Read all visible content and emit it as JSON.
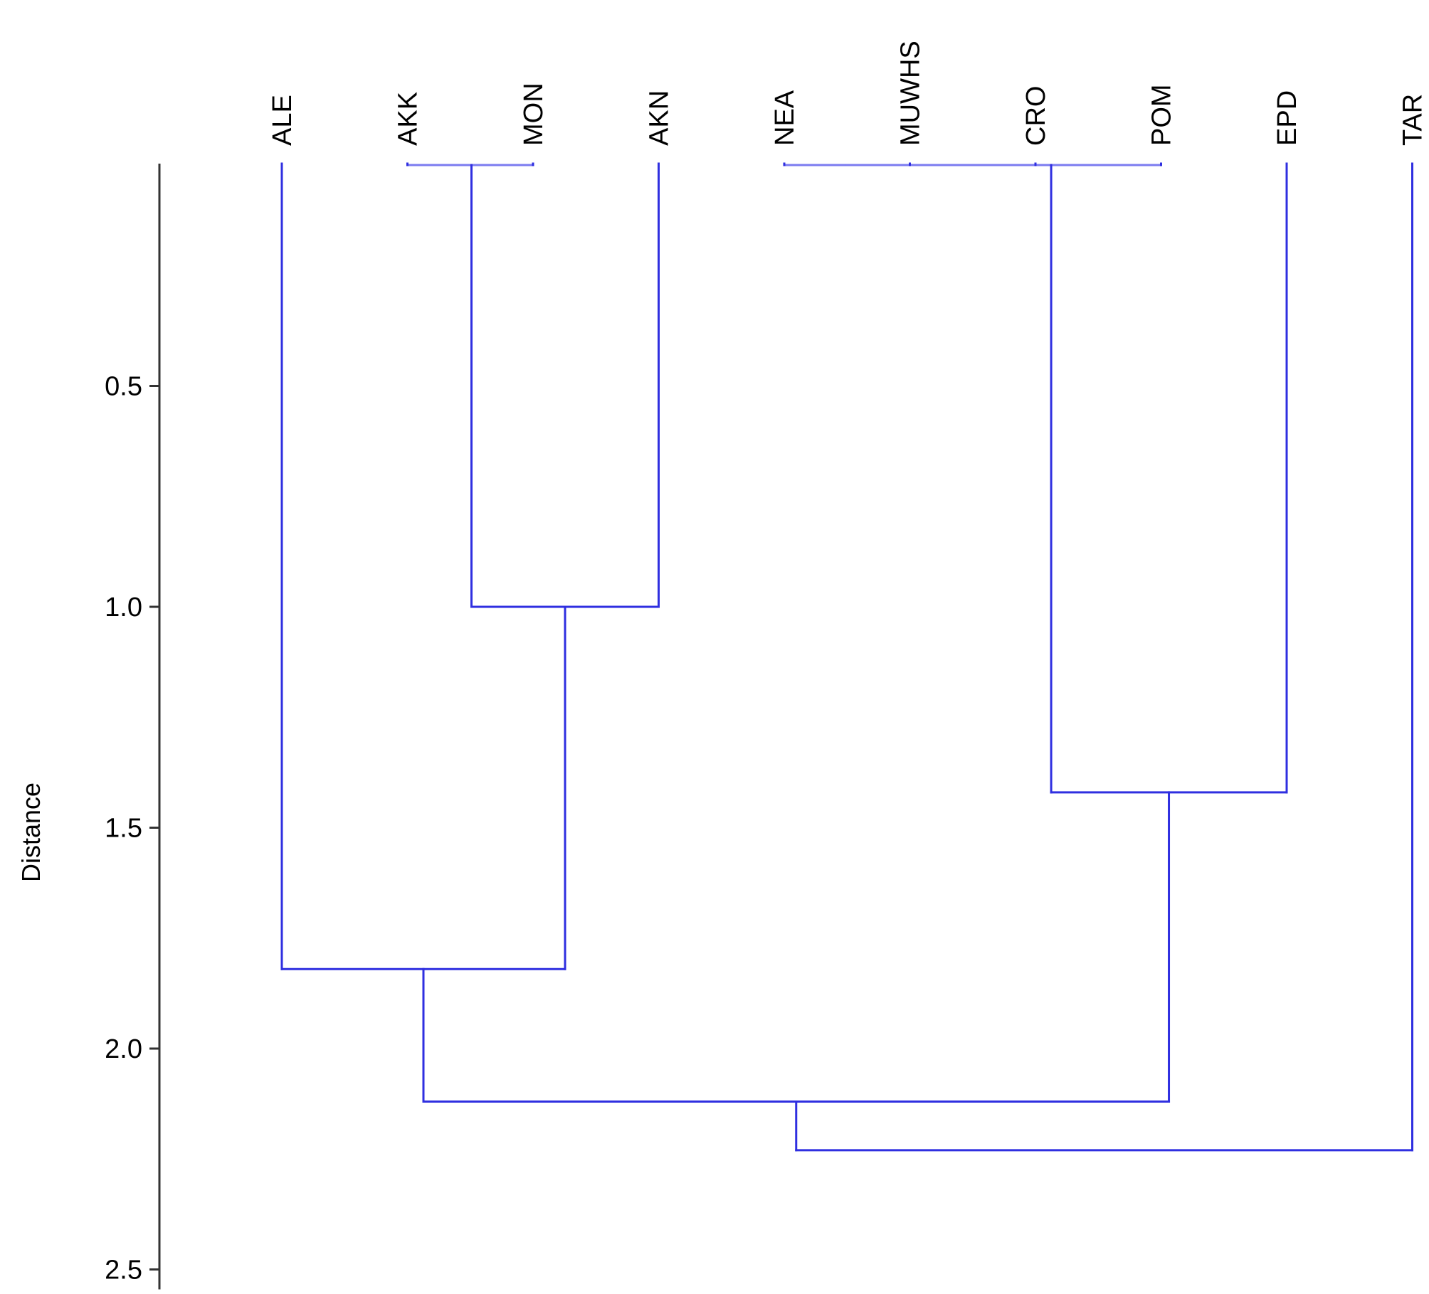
{
  "chart_data": {
    "type": "dendrogram",
    "ylabel": "Distance",
    "ylim": [
      0,
      2.5
    ],
    "yticks": [
      "0.5",
      "1.0",
      "1.5",
      "2.0",
      "2.5"
    ],
    "ytick_values": [
      0.5,
      1.0,
      1.5,
      2.0,
      2.5
    ],
    "leaves": [
      "ALE",
      "AKK",
      "MON",
      "AKN",
      "NEA",
      "MUWHS",
      "CRO",
      "POM",
      "EPD",
      "TAR"
    ],
    "merges": [
      {
        "members": [
          "AKK",
          "MON"
        ],
        "height": 0.0
      },
      {
        "members": [
          "AKK+MON",
          "AKN"
        ],
        "height": 1.0
      },
      {
        "members": [
          "ALE",
          "AKK+MON+AKN"
        ],
        "height": 1.82
      },
      {
        "members": [
          "NEA",
          "MUWHS"
        ],
        "height": 0.0
      },
      {
        "members": [
          "NEA+MUWHS",
          "CRO"
        ],
        "height": 0.0
      },
      {
        "members": [
          "NEA+MUWHS+CRO",
          "POM"
        ],
        "height": 0.0
      },
      {
        "members": [
          "NEA+MUWHS+CRO+POM",
          "EPD"
        ],
        "height": 1.42
      },
      {
        "members": [
          "ALE+AKK+MON+AKN",
          "NEA+MUWHS+CRO+POM+EPD"
        ],
        "height": 2.12
      },
      {
        "members": [
          "ALE..EPD",
          "TAR"
        ],
        "height": 2.23
      }
    ],
    "colors": {
      "line": "#2f2fe0",
      "zero_line": "#7b7bf0",
      "axis": "#333333"
    }
  }
}
